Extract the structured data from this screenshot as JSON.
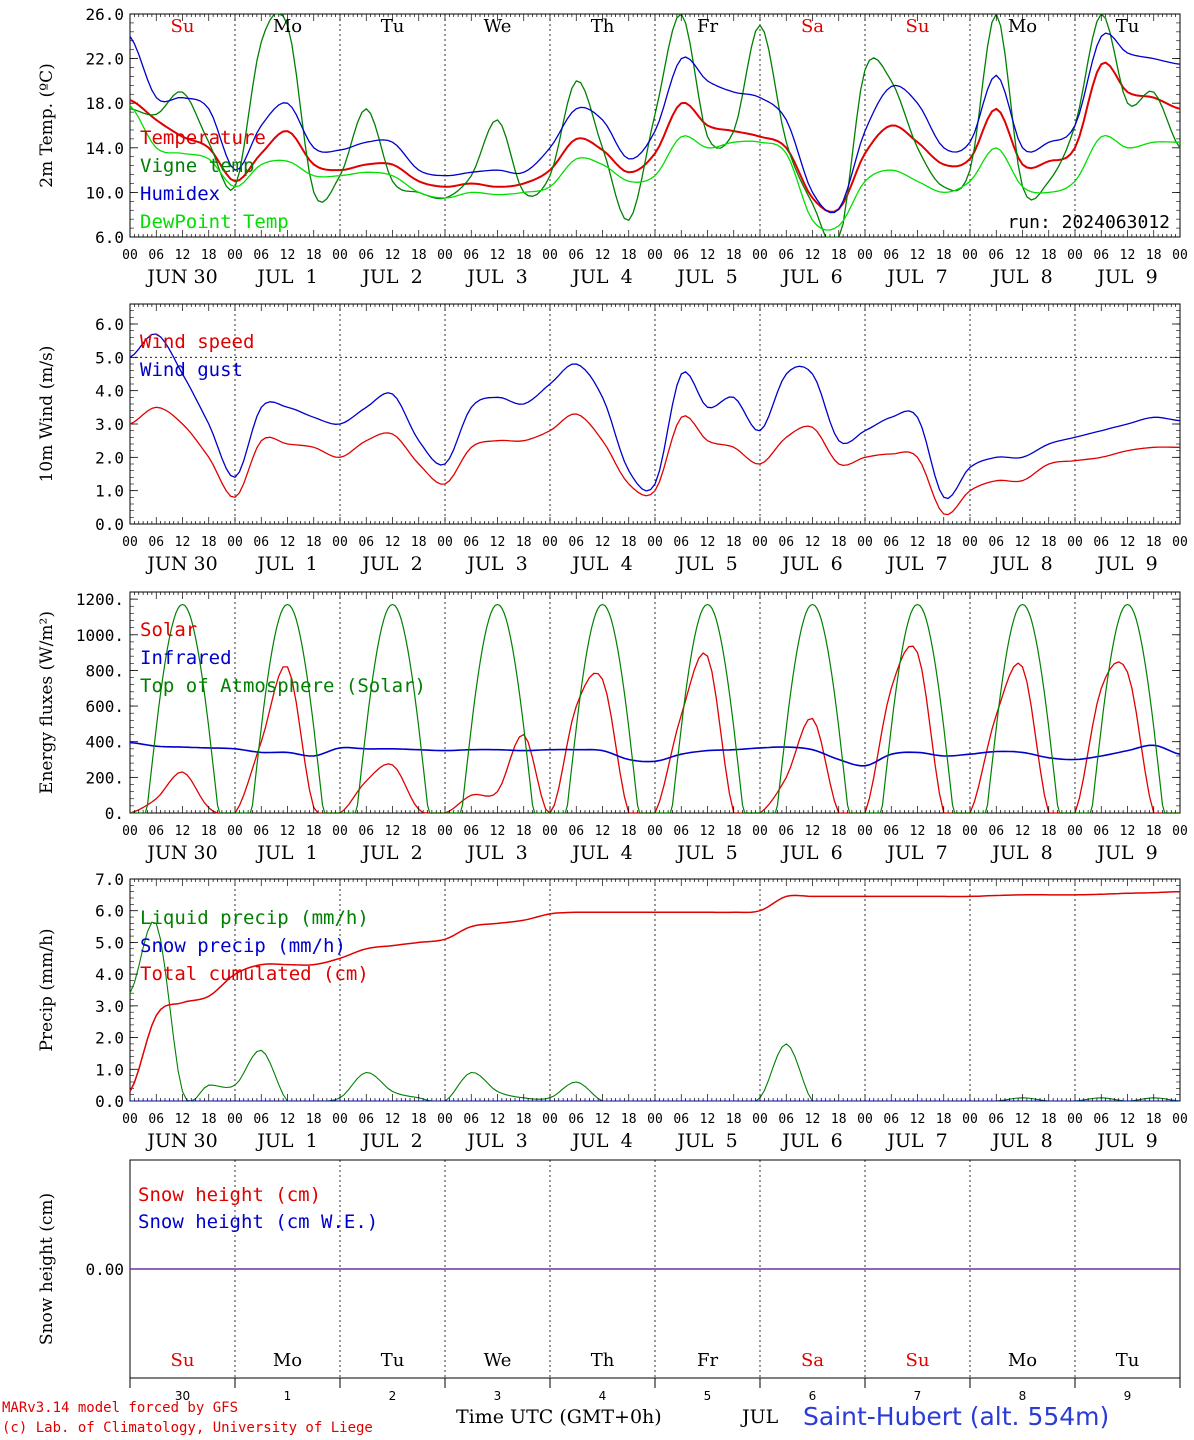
{
  "days": [
    "JUN 30",
    "JUL  1",
    "JUL  2",
    "JUL  3",
    "JUL  4",
    "JUL  5",
    "JUL  6",
    "JUL  7",
    "JUL  8",
    "JUL  9"
  ],
  "weekdays": [
    {
      "label": "Su",
      "color": "#e00000"
    },
    {
      "label": "Mo",
      "color": "#000000"
    },
    {
      "label": "Tu",
      "color": "#000000"
    },
    {
      "label": "We",
      "color": "#000000"
    },
    {
      "label": "Th",
      "color": "#000000"
    },
    {
      "label": "Fr",
      "color": "#000000"
    },
    {
      "label": "Sa",
      "color": "#e00000"
    },
    {
      "label": "Su",
      "color": "#e00000"
    },
    {
      "label": "Mo",
      "color": "#000000"
    },
    {
      "label": "Tu",
      "color": "#000000"
    }
  ],
  "hour_ticks": [
    "00",
    "06",
    "12",
    "18"
  ],
  "last_tick": "00",
  "bottom_day_numbers": [
    "30",
    "1",
    "2",
    "3",
    "4",
    "5",
    "6",
    "7",
    "8",
    "9"
  ],
  "footer": {
    "credit_line1": "MARv3.14 model forced by GFS",
    "credit_line2": "(c) Lab. of Climatology, University of Liege",
    "time_label": "Time UTC (GMT+0h)",
    "month_label": "JUL",
    "station": "Saint-Hubert (alt. 554m)"
  },
  "chart_data": [
    {
      "id": "temp",
      "type": "line",
      "ylabel": "2m Temp. (ºC)",
      "ylim": [
        6,
        26
      ],
      "yticks": [
        "6.0",
        "10.0",
        "14.0",
        "18.0",
        "22.0",
        "26.0"
      ],
      "ytick_values": [
        6,
        10,
        14,
        18,
        22,
        26
      ],
      "annotation": "run: 2024063012",
      "x_hours": [
        0,
        6,
        12,
        18,
        24,
        30,
        36,
        42,
        48,
        54,
        60,
        66,
        72,
        78,
        84,
        90,
        96,
        102,
        108,
        114,
        120,
        126,
        132,
        138,
        144,
        150,
        156,
        162,
        168,
        174,
        180,
        186,
        192,
        198,
        204,
        210,
        216,
        222,
        228,
        234,
        240
      ],
      "series": [
        {
          "name": "Temperature",
          "color": "#e00000",
          "width": 2,
          "values": [
            18.3,
            16.5,
            15.0,
            14.0,
            11.0,
            13.5,
            15.5,
            12.5,
            12.0,
            12.5,
            12.5,
            11.0,
            10.5,
            10.8,
            10.5,
            10.8,
            12.0,
            14.8,
            13.8,
            11.8,
            13.5,
            18.0,
            16.0,
            15.5,
            15.0,
            14.0,
            9.5,
            8.5,
            13.5,
            16.0,
            14.5,
            12.5,
            13.0,
            17.5,
            12.5,
            12.8,
            14.0,
            21.5,
            19.0,
            18.5,
            17.5
          ]
        },
        {
          "name": "Vigne temp",
          "color": "#008000",
          "width": 1.3,
          "values": [
            17.5,
            17.0,
            19.0,
            14.5,
            10.5,
            23.5,
            25.0,
            10.0,
            11.5,
            17.5,
            11.0,
            10.0,
            9.5,
            11.5,
            16.5,
            10.0,
            11.5,
            20.0,
            14.0,
            7.5,
            17.0,
            26.0,
            15.0,
            15.5,
            25.0,
            14.5,
            9.0,
            5.5,
            21.0,
            20.0,
            14.0,
            10.5,
            12.0,
            26.0,
            10.5,
            11.0,
            16.0,
            26.0,
            18.0,
            19.0,
            14.0
          ]
        },
        {
          "name": "Humidex",
          "color": "#0000cc",
          "width": 1.3,
          "values": [
            24.0,
            18.5,
            18.5,
            17.5,
            12.0,
            16.0,
            18.0,
            14.0,
            13.8,
            14.5,
            14.5,
            12.0,
            11.5,
            11.8,
            12.0,
            11.8,
            14.0,
            17.5,
            16.5,
            13.0,
            15.5,
            22.0,
            20.0,
            19.0,
            18.5,
            16.5,
            10.0,
            8.5,
            15.5,
            19.5,
            18.0,
            14.0,
            14.5,
            20.5,
            14.0,
            14.5,
            16.0,
            24.0,
            22.5,
            22.0,
            21.5
          ]
        },
        {
          "name": "DewPoint Temp",
          "color": "#00e000",
          "width": 1.3,
          "values": [
            17.8,
            14.0,
            13.5,
            13.0,
            10.5,
            12.5,
            12.8,
            11.5,
            11.5,
            11.8,
            11.5,
            10.0,
            9.5,
            10.0,
            9.8,
            10.0,
            10.5,
            13.0,
            12.5,
            11.0,
            11.5,
            15.0,
            14.0,
            14.5,
            14.5,
            13.5,
            7.5,
            7.0,
            11.0,
            12.0,
            11.0,
            10.0,
            11.0,
            14.0,
            10.5,
            10.0,
            11.0,
            15.0,
            14.0,
            14.5,
            14.5
          ]
        }
      ]
    },
    {
      "id": "wind",
      "type": "line",
      "ylabel": "10m Wind (m/s)",
      "ylim": [
        0,
        6.6
      ],
      "yticks": [
        "0.0",
        "1.0",
        "2.0",
        "3.0",
        "4.0",
        "5.0",
        "6.0"
      ],
      "ytick_values": [
        0,
        1,
        2,
        3,
        4,
        5,
        6
      ],
      "reference_line": 5.0,
      "x_hours": [
        0,
        6,
        12,
        18,
        24,
        30,
        36,
        42,
        48,
        54,
        60,
        66,
        72,
        78,
        84,
        90,
        96,
        102,
        108,
        114,
        120,
        126,
        132,
        138,
        144,
        150,
        156,
        162,
        168,
        174,
        180,
        186,
        192,
        198,
        204,
        210,
        216,
        222,
        228,
        234,
        240
      ],
      "series": [
        {
          "name": "Wind speed",
          "color": "#e00000",
          "width": 1.3,
          "values": [
            3.0,
            3.5,
            3.0,
            2.0,
            0.8,
            2.5,
            2.4,
            2.3,
            2.0,
            2.5,
            2.7,
            1.8,
            1.2,
            2.3,
            2.5,
            2.5,
            2.8,
            3.3,
            2.5,
            1.2,
            1.0,
            3.2,
            2.5,
            2.3,
            1.8,
            2.6,
            2.9,
            1.8,
            2.0,
            2.1,
            2.0,
            0.3,
            1.0,
            1.3,
            1.3,
            1.8,
            1.9,
            2.0,
            2.2,
            2.3,
            2.3
          ]
        },
        {
          "name": "Wind gust",
          "color": "#0000cc",
          "width": 1.3,
          "values": [
            5.0,
            5.7,
            4.5,
            3.0,
            1.4,
            3.5,
            3.5,
            3.2,
            3.0,
            3.5,
            3.9,
            2.5,
            1.8,
            3.5,
            3.8,
            3.6,
            4.2,
            4.8,
            3.8,
            1.6,
            1.2,
            4.5,
            3.5,
            3.8,
            2.8,
            4.5,
            4.5,
            2.5,
            2.8,
            3.2,
            3.2,
            0.8,
            1.7,
            2.0,
            2.0,
            2.4,
            2.6,
            2.8,
            3.0,
            3.2,
            3.1
          ]
        }
      ]
    },
    {
      "id": "energy",
      "type": "line",
      "ylabel": "Energy fluxes (W/m²)",
      "ylim": [
        0,
        1240
      ],
      "yticks": [
        "0.",
        "200.",
        "400.",
        "600.",
        "800.",
        "1000.",
        "1200."
      ],
      "ytick_values": [
        0,
        200,
        400,
        600,
        800,
        1000,
        1200
      ],
      "x_hours": [
        0,
        6,
        12,
        18,
        24,
        30,
        36,
        42,
        48,
        54,
        60,
        66,
        72,
        78,
        84,
        90,
        96,
        102,
        108,
        114,
        120,
        126,
        132,
        138,
        144,
        150,
        156,
        162,
        168,
        174,
        180,
        186,
        192,
        198,
        204,
        210,
        216,
        222,
        228,
        234,
        240
      ],
      "series": [
        {
          "name": "Solar",
          "color": "#e00000",
          "width": 1.3,
          "values": [
            0,
            80,
            230,
            30,
            0,
            400,
            820,
            30,
            0,
            180,
            270,
            20,
            0,
            100,
            120,
            440,
            0,
            600,
            750,
            0,
            0,
            550,
            880,
            0,
            0,
            200,
            530,
            0,
            0,
            700,
            900,
            0,
            0,
            550,
            820,
            0,
            0,
            700,
            790,
            0,
            0
          ]
        },
        {
          "name": "Infrared",
          "color": "#0000cc",
          "width": 1.6,
          "values": [
            395,
            375,
            370,
            365,
            360,
            340,
            340,
            320,
            365,
            360,
            360,
            355,
            350,
            355,
            355,
            350,
            355,
            355,
            350,
            300,
            290,
            330,
            350,
            355,
            365,
            370,
            355,
            300,
            265,
            330,
            340,
            320,
            330,
            345,
            340,
            310,
            300,
            320,
            350,
            380,
            330
          ]
        },
        {
          "name": "Top of Atmosphere (Solar)",
          "color": "#008000",
          "width": 1.2,
          "solar_toa": true,
          "peak": 1170,
          "values": []
        }
      ]
    },
    {
      "id": "precip",
      "type": "line",
      "ylabel": "Precip (mm/h)",
      "ylim": [
        0,
        7.0
      ],
      "yticks": [
        "0.0",
        "1.0",
        "2.0",
        "3.0",
        "4.0",
        "5.0",
        "6.0",
        "7.0"
      ],
      "ytick_values": [
        0,
        1,
        2,
        3,
        4,
        5,
        6,
        7
      ],
      "x_hours": [
        0,
        6,
        12,
        18,
        24,
        30,
        36,
        42,
        48,
        54,
        60,
        66,
        72,
        78,
        84,
        90,
        96,
        102,
        108,
        114,
        120,
        126,
        132,
        138,
        144,
        150,
        156,
        162,
        168,
        174,
        180,
        186,
        192,
        198,
        204,
        210,
        216,
        222,
        228,
        234,
        240
      ],
      "series": [
        {
          "name": "Liquid precip (mm/h)",
          "color": "#008000",
          "width": 1.1,
          "values": [
            3.4,
            5.6,
            0.3,
            0.5,
            0.5,
            1.6,
            0.0,
            0.0,
            0.1,
            0.9,
            0.3,
            0.1,
            0.0,
            0.9,
            0.3,
            0.1,
            0.1,
            0.6,
            0.0,
            0.0,
            0.0,
            0.0,
            0.0,
            0.0,
            0.1,
            1.8,
            0.0,
            0.0,
            0.0,
            0.0,
            0.0,
            0.0,
            0.0,
            0.0,
            0.1,
            0.0,
            0.0,
            0.1,
            0.0,
            0.1,
            0.0
          ]
        },
        {
          "name": "Snow precip (mm/h)",
          "color": "#0000cc",
          "width": 1.1,
          "values": [
            0,
            0,
            0,
            0,
            0,
            0,
            0,
            0,
            0,
            0,
            0,
            0,
            0,
            0,
            0,
            0,
            0,
            0,
            0,
            0,
            0,
            0,
            0,
            0,
            0,
            0,
            0,
            0,
            0,
            0,
            0,
            0,
            0,
            0,
            0,
            0,
            0,
            0,
            0,
            0,
            0
          ]
        },
        {
          "name": "Total cumulated (cm)",
          "color": "#e00000",
          "width": 1.5,
          "values": [
            0.3,
            2.7,
            3.1,
            3.3,
            4.0,
            4.3,
            4.3,
            4.3,
            4.5,
            4.8,
            4.9,
            5.0,
            5.1,
            5.5,
            5.6,
            5.7,
            5.9,
            5.95,
            5.95,
            5.95,
            5.95,
            5.95,
            5.95,
            5.95,
            6.0,
            6.45,
            6.45,
            6.45,
            6.45,
            6.45,
            6.45,
            6.45,
            6.45,
            6.48,
            6.5,
            6.5,
            6.5,
            6.52,
            6.55,
            6.57,
            6.6
          ]
        }
      ]
    },
    {
      "id": "snow",
      "type": "line",
      "ylabel": "Snow height (cm)",
      "ytick_label": "0.00",
      "series": [
        {
          "name": "Snow height (cm)",
          "color": "#e00000"
        },
        {
          "name": "Snow height (cm W.E.)",
          "color": "#0000cc"
        }
      ],
      "zero_line_color": "#7030a0"
    }
  ]
}
